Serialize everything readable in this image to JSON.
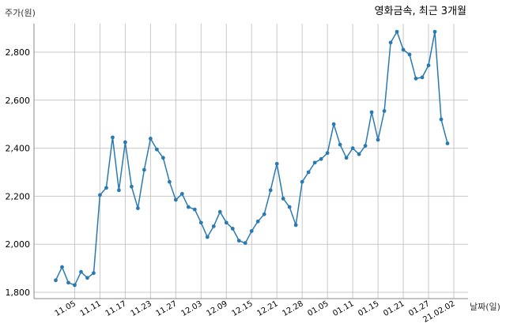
{
  "chart_data": {
    "type": "line",
    "title": "영화금속, 최근 3개월",
    "ylabel": "주가(원)",
    "xlabel": "날짜(일)",
    "ylim": [
      1780,
      2900
    ],
    "y_ticks": [
      1800,
      2000,
      2200,
      2400,
      2600,
      2800
    ],
    "y_tick_labels": [
      "1,800",
      "2,000",
      "2,200",
      "2,400",
      "2,600",
      "2,800"
    ],
    "x_tick_labels": [
      "11.05",
      "11.11",
      "11.17",
      "11.23",
      "11.27",
      "12.03",
      "12.09",
      "12.15",
      "12.21",
      "12.28",
      "01.05",
      "01.11",
      "01.15",
      "01.21",
      "01.27",
      "21.02.02"
    ],
    "x_tick_positions": [
      3,
      7,
      11,
      15,
      19,
      23,
      27,
      31,
      35,
      39,
      43,
      47,
      51,
      55,
      59,
      63
    ],
    "grid": true,
    "color": "#2a7ab0",
    "series": [
      {
        "values": [
          1850,
          1905,
          1840,
          1830,
          1885,
          1860,
          1880,
          2205,
          2235,
          2445,
          2225,
          2425,
          2240,
          2150,
          2310,
          2440,
          2395,
          2360,
          2260,
          2185,
          2210,
          2155,
          2145,
          2090,
          2030,
          2075,
          2135,
          2090,
          2065,
          2015,
          2005,
          2055,
          2095,
          2125,
          2225,
          2335,
          2190,
          2155,
          2080,
          2260,
          2300,
          2340,
          2355,
          2380,
          2500,
          2415,
          2360,
          2400,
          2375,
          2410,
          2550,
          2435,
          2555,
          2840,
          2885,
          2810,
          2790,
          2690,
          2695,
          2745,
          2885,
          2520,
          2420
        ]
      }
    ]
  }
}
